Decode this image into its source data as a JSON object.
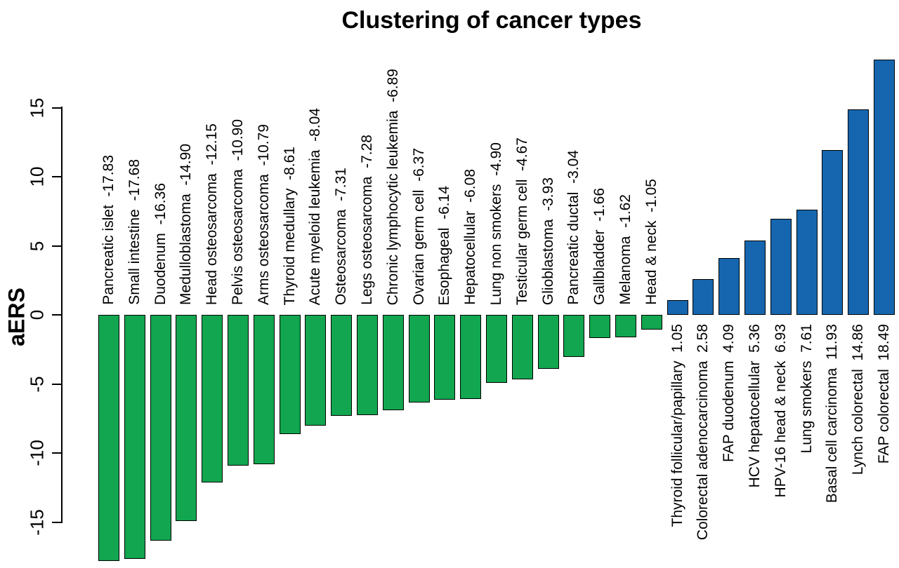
{
  "chart_data": {
    "type": "bar",
    "title": "Clustering of cancer types",
    "ylabel": "aERS",
    "yticks": [
      15,
      10,
      5,
      0,
      -5,
      -10,
      -15
    ],
    "ylim": [
      -18.5,
      19
    ],
    "grid": false,
    "legend": null,
    "colors": {
      "negative_bar": "#11A64F",
      "positive_bar": "#1566AE",
      "bar_border": "#000000"
    },
    "bars": [
      {
        "name": "Pancreatic islet",
        "value": -17.83,
        "value_str": "-17.83"
      },
      {
        "name": "Small intestine",
        "value": -17.68,
        "value_str": "-17.68"
      },
      {
        "name": "Duodenum",
        "value": -16.36,
        "value_str": "-16.36"
      },
      {
        "name": "Medulloblastoma",
        "value": -14.9,
        "value_str": "-14.90"
      },
      {
        "name": "Head osteosarcoma",
        "value": -12.15,
        "value_str": "-12.15"
      },
      {
        "name": "Pelvis osteosarcoma",
        "value": -10.9,
        "value_str": "-10.90"
      },
      {
        "name": "Arms osteosarcoma",
        "value": -10.79,
        "value_str": "-10.79"
      },
      {
        "name": "Thyroid medullary",
        "value": -8.61,
        "value_str": "-8.61"
      },
      {
        "name": "Acute myeloid leukemia",
        "value": -8.04,
        "value_str": "-8.04"
      },
      {
        "name": "Osteosarcoma",
        "value": -7.31,
        "value_str": "-7.31"
      },
      {
        "name": "Legs osteosarcoma",
        "value": -7.28,
        "value_str": "-7.28"
      },
      {
        "name": "Chronic lymphocytic leukemia",
        "value": -6.89,
        "value_str": "-6.89"
      },
      {
        "name": "Ovarian germ cell",
        "value": -6.37,
        "value_str": "-6.37"
      },
      {
        "name": "Esophageal",
        "value": -6.14,
        "value_str": "-6.14"
      },
      {
        "name": "Hepatocellular",
        "value": -6.08,
        "value_str": "-6.08"
      },
      {
        "name": "Lung non smokers",
        "value": -4.9,
        "value_str": "-4.90"
      },
      {
        "name": "Testicular germ cell",
        "value": -4.67,
        "value_str": "-4.67"
      },
      {
        "name": "Glioblastoma",
        "value": -3.93,
        "value_str": "-3.93"
      },
      {
        "name": "Pancreatic ductal",
        "value": -3.04,
        "value_str": "-3.04"
      },
      {
        "name": "Gallbladder",
        "value": -1.66,
        "value_str": "-1.66"
      },
      {
        "name": "Melanoma",
        "value": -1.62,
        "value_str": "-1.62"
      },
      {
        "name": "Head & neck",
        "value": -1.05,
        "value_str": "-1.05"
      },
      {
        "name": "Thyroid follicular/papillary",
        "value": 1.05,
        "value_str": "1.05"
      },
      {
        "name": "Colorectal adenocarcinoma",
        "value": 2.58,
        "value_str": "2.58"
      },
      {
        "name": "FAP duodenum",
        "value": 4.09,
        "value_str": "4.09"
      },
      {
        "name": "HCV hepatocellular",
        "value": 5.36,
        "value_str": "5.36"
      },
      {
        "name": "HPV-16 head & neck",
        "value": 6.93,
        "value_str": "6.93"
      },
      {
        "name": "Lung smokers",
        "value": 7.61,
        "value_str": "7.61"
      },
      {
        "name": "Basal cell carcinoma",
        "value": 11.93,
        "value_str": "11.93"
      },
      {
        "name": "Lynch colorectal",
        "value": 14.86,
        "value_str": "14.86"
      },
      {
        "name": "FAP colorectal",
        "value": 18.49,
        "value_str": "18.49"
      }
    ]
  }
}
